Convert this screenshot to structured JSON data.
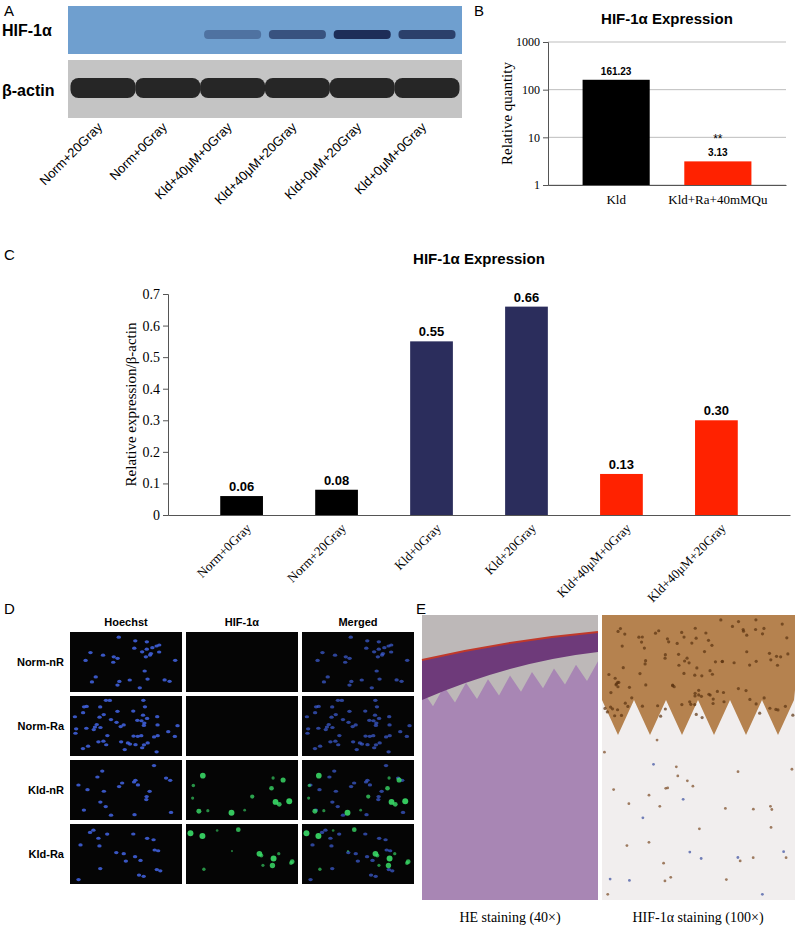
{
  "panel_labels": [
    "A",
    "B",
    "C",
    "D",
    "E"
  ],
  "western_blot": {
    "proteins": [
      "HIF-1α",
      "β-actin"
    ],
    "lanes": [
      "Norm+20Gray",
      "Norm+0Gray",
      "Kld+40μM+0Gray",
      "Kld+40μM+20Gray",
      "Kld+0μM+20Gray",
      "Kld+0μM+0Gray"
    ],
    "hif_band_intensity": [
      0,
      0,
      0.35,
      0.6,
      0.9,
      0.75
    ]
  },
  "chart_data": [
    {
      "type": "bar",
      "title": "HIF-1α Expression",
      "ylabel": "Relative quantity",
      "categories": [
        "Kld",
        "Kld+Ra+40mMQu"
      ],
      "values": [
        161.23,
        3.13
      ],
      "colors": [
        "#000000",
        "#ff2200"
      ],
      "log": "y",
      "ylim": [
        1,
        1000
      ],
      "yticks": [
        1,
        10,
        100,
        1000
      ],
      "grid": true,
      "data_labels": true,
      "annotations": [
        {
          "text": "**",
          "category": "Kld+Ra+40mMQu"
        }
      ]
    },
    {
      "type": "bar",
      "title": "HIF-1α Expression",
      "ylabel": "Relative expression/β-actin",
      "categories": [
        "Norm+0Gray",
        "Norm+20Gray",
        "Kld+0Gray",
        "Kld+20Gray",
        "Kld+40μM+0Gray",
        "Kld+40μM+20Gray"
      ],
      "values": [
        0.06,
        0.08,
        0.55,
        0.66,
        0.13,
        0.3
      ],
      "value_labels": [
        "0.06",
        "0.08",
        "0.55",
        "0.66",
        "0.13",
        "0.30"
      ],
      "colors": [
        "#000000",
        "#000000",
        "#2b2d5c",
        "#2b2d5c",
        "#ff2200",
        "#ff2200"
      ],
      "ylim": [
        0,
        0.7
      ],
      "yticks": [
        0,
        0.1,
        0.2,
        0.3,
        0.4,
        0.5,
        0.6,
        0.7
      ],
      "grid": false,
      "data_labels": true
    }
  ],
  "immunofluorescence": {
    "columns": [
      "Hoechst",
      "HIF-1α",
      "Merged"
    ],
    "rows": [
      "Norm-nR",
      "Norm-Ra",
      "Kld-nR",
      "Kld-Ra"
    ]
  },
  "histology": {
    "captions": [
      "HE staining (40×)",
      "HIF-1α staining (100×)"
    ]
  }
}
